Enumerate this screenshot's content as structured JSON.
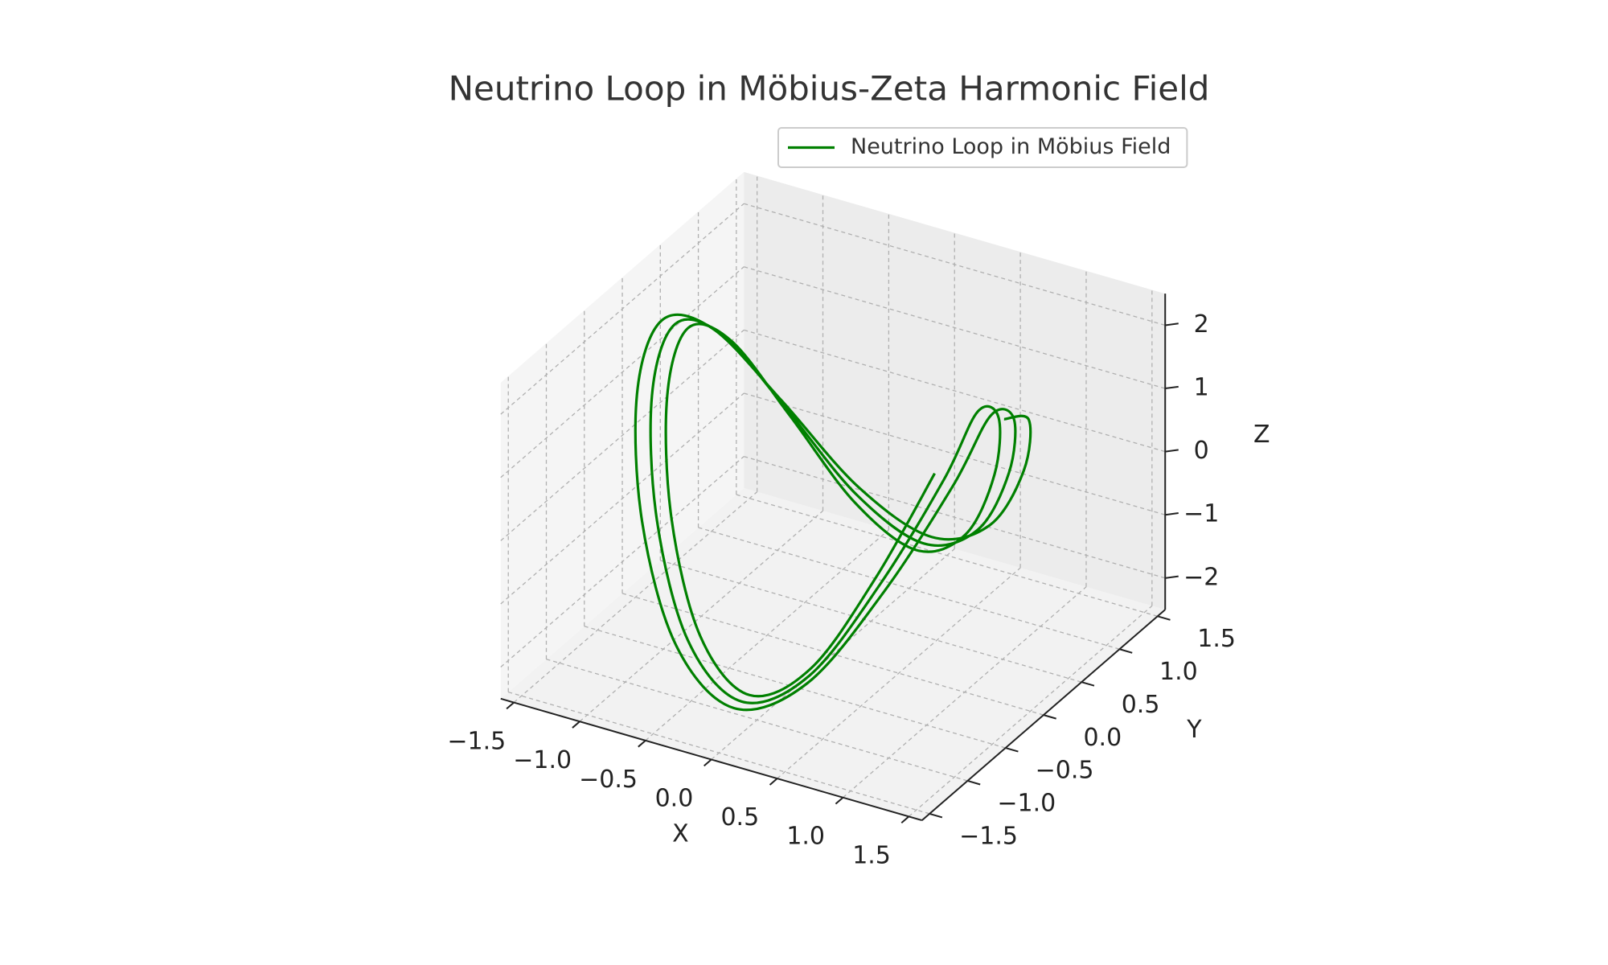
{
  "chart_data": {
    "type": "line3d",
    "title": "Neutrino Loop in Möbius-Zeta Harmonic Field",
    "xlabel": "X",
    "ylabel": "Y",
    "zlabel": "Z",
    "xlim": [
      -1.6,
      1.6
    ],
    "ylim": [
      -1.6,
      1.6
    ],
    "zlim": [
      -2.5,
      2.5
    ],
    "xticks": [
      {
        "value": -1.5,
        "label": "−1.5"
      },
      {
        "value": -1,
        "label": "−1.0"
      },
      {
        "value": -0.5,
        "label": "−0.5"
      },
      {
        "value": 0,
        "label": "0.0"
      },
      0.5,
      {
        "value": 1,
        "label": "1.0"
      },
      1.5
    ],
    "yticks": [
      {
        "value": -1.5,
        "label": "−1.5"
      },
      {
        "value": -1,
        "label": "−1.0"
      },
      {
        "value": -0.5,
        "label": "−0.5"
      },
      {
        "value": 0,
        "label": "0.0"
      },
      0.5,
      {
        "value": 1,
        "label": "1.0"
      },
      1.5
    ],
    "zticks": [
      {
        "value": -2,
        "label": "−2"
      },
      {
        "value": -1,
        "label": "−1"
      },
      0,
      1,
      2
    ],
    "grid": true,
    "legend": "upper right",
    "series": [
      {
        "name": "Neutrino Loop in Möbius Field",
        "color": "#008000",
        "x": [
          1.3,
          1.201,
          0.919,
          0.498,
          0,
          -0.498,
          -0.919,
          -1.201,
          -1.3,
          -1.201,
          -0.919,
          -0.498,
          0,
          0.498,
          0.919,
          1.201,
          1.2,
          1.109,
          0.848,
          0.46,
          0,
          -0.46,
          -0.848,
          -1.109,
          -1.2,
          -1.109,
          -0.848,
          -0.46,
          0,
          0.46,
          0.848,
          1.109,
          1.1,
          1.016,
          0.778,
          0.421,
          0,
          -0.421,
          -0.778,
          -1.016,
          -1.1,
          -1.016,
          -0.778,
          -0.421,
          0,
          0.421,
          0.778,
          1.016
        ],
        "y": [
          0,
          0.498,
          0.919,
          1.201,
          1.3,
          1.201,
          0.919,
          0.498,
          0,
          -0.498,
          -0.919,
          -1.201,
          -1.3,
          -1.201,
          -0.919,
          -0.498,
          0,
          0.46,
          0.848,
          1.109,
          1.2,
          1.109,
          0.848,
          0.46,
          0,
          -0.46,
          -0.848,
          -1.109,
          -1.2,
          -1.109,
          -0.848,
          -0.46,
          0,
          0.421,
          0.778,
          1.016,
          1.1,
          1.016,
          0.778,
          0.421,
          0,
          -0.421,
          -0.778,
          -1.016,
          -1.1,
          -1.016,
          -0.778,
          -0.421
        ],
        "z": [
          2,
          1.41,
          0,
          -1.41,
          -2,
          -1.41,
          0,
          1.41,
          2,
          1.41,
          0,
          -1.41,
          -2,
          -1.41,
          0,
          1.41,
          2,
          1.41,
          0,
          -1.41,
          -2,
          -1.41,
          0,
          1.41,
          2,
          1.41,
          0,
          -1.41,
          -2,
          -1.41,
          0,
          1.41,
          2,
          1.41,
          0,
          -1.41,
          -2,
          -1.41,
          0,
          1.41,
          2,
          1.41,
          0,
          -1.41,
          -2,
          -1.41,
          0,
          1.41
        ]
      }
    ]
  }
}
